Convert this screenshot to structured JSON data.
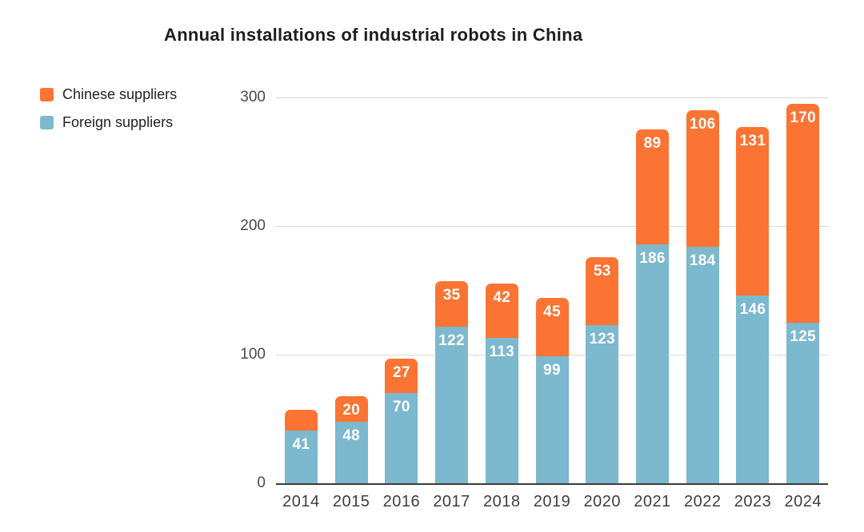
{
  "title": "Annual installations of industrial robots in China",
  "legend": {
    "items": [
      {
        "label": "Chinese suppliers",
        "color": "#fb7433"
      },
      {
        "label": "Foreign suppliers",
        "color": "#7cb8ce"
      }
    ]
  },
  "chart_data": {
    "type": "bar",
    "stacked": true,
    "title": "Annual installations of industrial robots in China",
    "categories": [
      "2014",
      "2015",
      "2016",
      "2017",
      "2018",
      "2019",
      "2020",
      "2021",
      "2022",
      "2023",
      "2024"
    ],
    "series": [
      {
        "name": "Chinese suppliers",
        "color": "#fb7433",
        "values": [
          16,
          20,
          27,
          35,
          42,
          45,
          53,
          89,
          106,
          131,
          170
        ],
        "labels": [
          "",
          "20",
          "27",
          "35",
          "42",
          "45",
          "53",
          "89",
          "106",
          "131",
          "170"
        ]
      },
      {
        "name": "Foreign suppliers",
        "color": "#7cb8ce",
        "values": [
          41,
          48,
          70,
          122,
          113,
          99,
          123,
          186,
          184,
          146,
          125
        ],
        "labels": [
          "41",
          "48",
          "70",
          "122",
          "113",
          "99",
          "123",
          "186",
          "184",
          "146",
          "125"
        ]
      }
    ],
    "xlabel": "",
    "ylabel": "",
    "ylim": [
      0,
      300
    ],
    "yticks": [
      0,
      100,
      200,
      300
    ],
    "grid": true,
    "legend_position": "top-left",
    "bar_label_color": "#ffffff",
    "axis_color": "#3b3b3b",
    "gridline_color": "#d9d9d9",
    "tick_label_color": "#4a4a4a"
  }
}
